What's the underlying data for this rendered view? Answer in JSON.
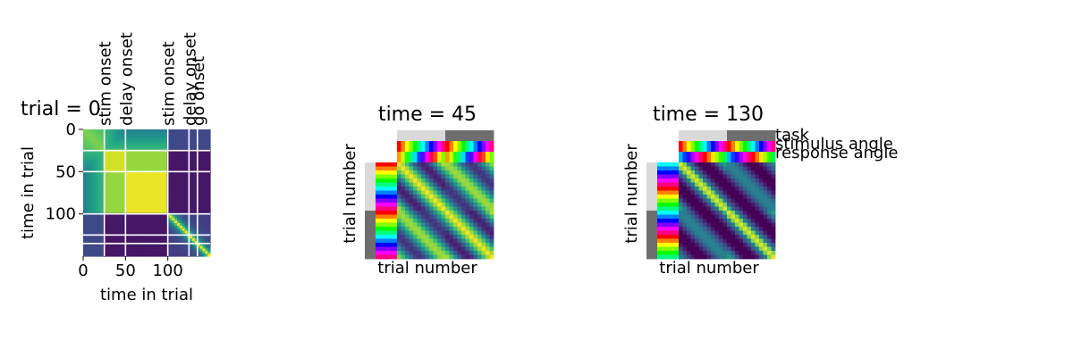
{
  "chart_data": [
    {
      "type": "heatmap",
      "title": "trial = 0",
      "xlabel": "time in trial",
      "ylabel": "time in trial",
      "xticks": [
        0,
        50,
        100
      ],
      "yticks": [
        0,
        50,
        100
      ],
      "xlim": [
        0,
        150
      ],
      "ylim": [
        150,
        0
      ],
      "colormap": "viridis",
      "event_lines": [
        {
          "t": 25,
          "label": "stim onset"
        },
        {
          "t": 50,
          "label": "delay onset"
        },
        {
          "t": 100,
          "label": "stim onset"
        },
        {
          "t": 125,
          "label": "delay onset"
        },
        {
          "t": 135,
          "label": "go onset"
        }
      ],
      "line_color": "#ffffff"
    },
    {
      "type": "heatmap",
      "title": "time = 45",
      "xlabel": "trial number",
      "ylabel": "trial number",
      "n_trials": 24,
      "task_colors": [
        "#d9d9d9",
        "#6e6e6e"
      ],
      "colormap": "viridis",
      "angle_colormap": "hsv"
    },
    {
      "type": "heatmap",
      "title": "time = 130",
      "xlabel": "trial number",
      "ylabel": "trial number",
      "n_trials": 24,
      "task_colors": [
        "#d9d9d9",
        "#6e6e6e"
      ],
      "colormap": "viridis",
      "angle_colormap": "hsv",
      "row_labels": [
        "task",
        "stimulus angle",
        "response angle"
      ]
    }
  ]
}
